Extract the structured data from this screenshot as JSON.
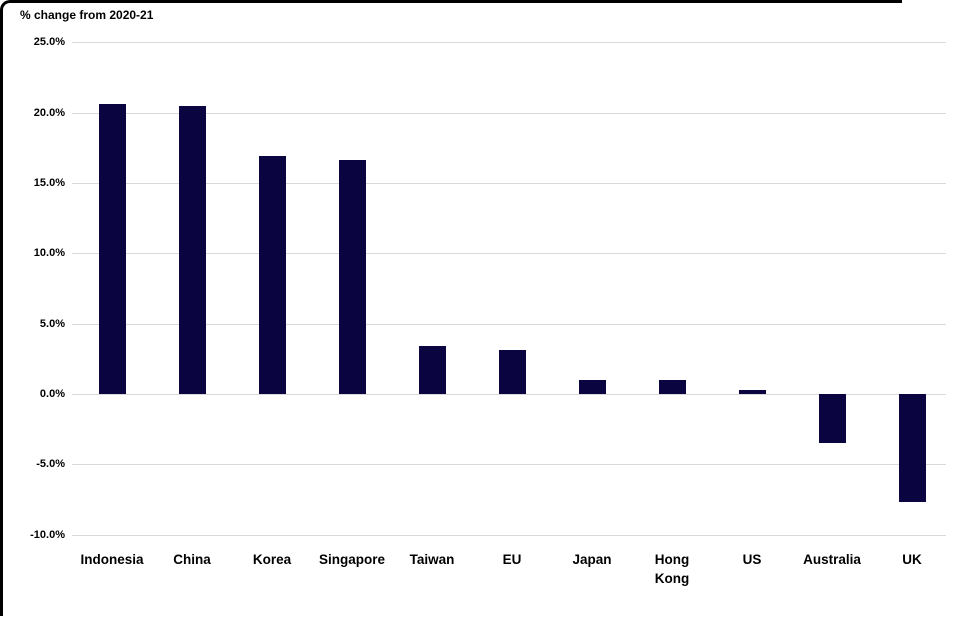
{
  "chart_data": {
    "type": "bar",
    "title": "% change from 2020-21",
    "xlabel": "",
    "ylabel": "",
    "categories": [
      "Indonesia",
      "China",
      "Korea",
      "Singapore",
      "Taiwan",
      "EU",
      "Japan",
      "Hong\nKong",
      "US",
      "Australia",
      "UK"
    ],
    "values": [
      20.6,
      20.5,
      16.9,
      16.6,
      3.4,
      3.1,
      1.0,
      1.0,
      0.3,
      -3.5,
      -7.7
    ],
    "series_name": "% change from 2020-21",
    "ylim": [
      -10.0,
      25.0
    ],
    "y_ticks": [
      {
        "value": 25,
        "label": "25.0%"
      },
      {
        "value": 20,
        "label": "20.0%"
      },
      {
        "value": 15,
        "label": "15.0%"
      },
      {
        "value": 10,
        "label": "10.0%"
      },
      {
        "value": 5,
        "label": "5.0%"
      },
      {
        "value": 0,
        "label": "0.0%"
      },
      {
        "value": -5,
        "label": "-5.0%"
      },
      {
        "value": -10,
        "label": "-10.0%"
      }
    ],
    "grid": true,
    "legend_position": "none",
    "bar_color": "#0a0440",
    "gridline_color": "#d9d9d9",
    "text_color": "#000000",
    "background_color": "#ffffff"
  }
}
